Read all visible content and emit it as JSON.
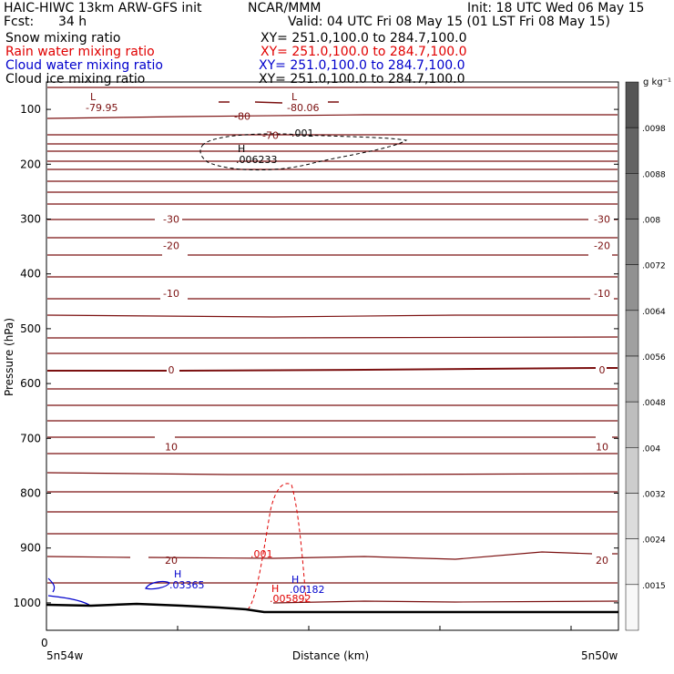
{
  "header": {
    "model": "HAIC-HIWC 13km ARW-GFS init",
    "org": "NCAR/MMM",
    "init": "Init: 18 UTC Wed 06 May 15",
    "fcst_label": "Fcst:",
    "fcst_value": "34 h",
    "valid": "Valid: 04 UTC Fri 08 May 15 (01 LST Fri 08 May 15)"
  },
  "fields": [
    {
      "name": "Snow mixing ratio",
      "xy": "XY= 251.0,100.0 to 284.7,100.0",
      "color": "#000000"
    },
    {
      "name": "Rain water mixing ratio",
      "xy": "XY= 251.0,100.0 to 284.7,100.0",
      "color": "#e00000"
    },
    {
      "name": "Cloud water mixing ratio",
      "xy": "XY= 251.0,100.0 to 284.7,100.0",
      "color": "#0000cc"
    },
    {
      "name": "Cloud ice mixing ratio",
      "xy": "XY= 251.0,100.0 to 284.7,100.0",
      "color": "#000000"
    }
  ],
  "chart_data": {
    "type": "cross-section contour",
    "ylabel": "Pressure (hPa)",
    "xlabel": "Distance (km)",
    "x_left_label": "5n54w",
    "x_right_label": "5n50w",
    "x_zero_label": "0",
    "y_ticks": [
      100,
      200,
      300,
      400,
      500,
      600,
      700,
      800,
      900,
      1000
    ],
    "ylim": [
      1050,
      50
    ],
    "colorbar": {
      "unit": "g kg⁻¹",
      "labels": [
        ".0098",
        ".0088",
        ".008",
        ".0072",
        ".0064",
        ".0056",
        ".0048",
        ".004",
        ".0032",
        ".0024",
        ".0015"
      ],
      "colors": [
        "#555555",
        "#646464",
        "#737373",
        "#828282",
        "#919191",
        "#a0a0a0",
        "#afafaf",
        "#bebebe",
        "#cdcdcd",
        "#dcdcdc",
        "#ebebeb",
        "#f8f8f8"
      ]
    },
    "temperature_isotherms": {
      "color": "#7b1010",
      "labels": [
        {
          "text": "-80",
          "p": 112,
          "side": "mid-left"
        },
        {
          "text": "-70",
          "p": 147,
          "side": "mid"
        },
        {
          "text": "-30",
          "p": 300,
          "side": "both"
        },
        {
          "text": "-20",
          "p": 348,
          "side": "both"
        },
        {
          "text": "-10",
          "p": 435,
          "side": "both"
        },
        {
          "text": "0",
          "p": 575,
          "side": "both"
        },
        {
          "text": "10",
          "p": 715,
          "side": "both"
        },
        {
          "text": "20",
          "p": 922,
          "side": "both"
        }
      ],
      "extrema": [
        {
          "type": "L",
          "value": "-79.95"
        },
        {
          "type": "L",
          "value": "-80.06"
        }
      ]
    },
    "snow": {
      "color": "#000000",
      "contour_label": ".001",
      "max_label": "H",
      "max_value": ".006233"
    },
    "rain": {
      "color": "#e00000",
      "contour_label": ".001",
      "max_label": "H",
      "max_value": ".005892"
    },
    "cloud_water": {
      "color": "#0000cc",
      "max_label": "H",
      "max_value": ".03365",
      "max_value_2": ".00182"
    }
  }
}
